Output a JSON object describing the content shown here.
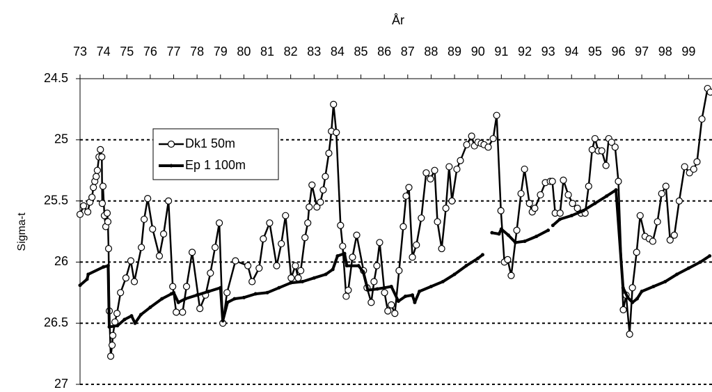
{
  "chart_data": {
    "type": "line",
    "x_title": "År",
    "y_title": "Sigma-t",
    "xlim": [
      73,
      100
    ],
    "xticks": [
      73,
      74,
      75,
      76,
      77,
      78,
      79,
      80,
      81,
      82,
      83,
      84,
      85,
      86,
      87,
      88,
      89,
      90,
      91,
      92,
      93,
      94,
      95,
      96,
      97,
      98,
      99
    ],
    "ylim": [
      24.5,
      27
    ],
    "y_reversed": true,
    "yticks": [
      24.5,
      25,
      25.5,
      26,
      26.5,
      27
    ],
    "grid": true,
    "legend": "upper left",
    "series": [
      {
        "name": "Dk1 50m",
        "color": "#000000",
        "marker": "open-circle",
        "x": [
          73.0,
          73.15,
          73.33,
          73.42,
          73.51,
          73.57,
          73.63,
          73.69,
          73.74,
          73.81,
          73.87,
          73.93,
          73.95,
          73.98,
          74.04,
          74.1,
          74.16,
          74.19,
          74.22,
          74.25,
          74.31,
          74.37,
          74.4,
          74.49,
          74.58,
          74.73,
          74.96,
          75.17,
          75.32,
          75.62,
          75.74,
          75.89,
          76.1,
          76.39,
          76.57,
          76.78,
          76.96,
          77.11,
          77.38,
          77.55,
          77.79,
          78.12,
          78.36,
          78.57,
          78.77,
          78.95,
          79.1,
          79.28,
          79.64,
          80.17,
          80.35,
          80.65,
          80.83,
          81.1,
          81.4,
          81.6,
          81.78,
          82.02,
          82.2,
          82.32,
          82.43,
          82.61,
          82.73,
          82.79,
          82.91,
          83.12,
          83.27,
          83.39,
          83.48,
          83.63,
          83.74,
          83.83,
          83.95,
          84.13,
          84.22,
          84.37,
          84.46,
          84.64,
          84.82,
          85.11,
          85.26,
          85.44,
          85.56,
          85.68,
          85.8,
          86.01,
          86.15,
          86.3,
          86.45,
          86.63,
          86.81,
          86.93,
          87.05,
          87.2,
          87.37,
          87.58,
          87.79,
          87.97,
          88.15,
          88.27,
          88.45,
          88.63,
          88.77,
          88.89,
          89.1,
          89.25,
          89.52,
          89.73,
          89.85,
          90.0,
          90.14,
          90.26,
          90.44,
          90.65,
          90.8,
          90.98,
          91.13,
          91.27,
          91.42,
          91.66,
          91.84,
          91.99,
          92.2,
          92.32,
          92.43,
          92.67,
          92.88,
          93.09,
          93.18,
          93.3,
          93.51,
          93.65,
          93.86,
          94.04,
          94.25,
          94.4,
          94.58,
          94.73,
          94.88,
          95.0,
          95.14,
          95.29,
          95.47,
          95.59,
          95.71,
          95.86,
          96.0,
          96.21,
          96.33,
          96.48,
          96.6,
          96.78,
          96.93,
          97.14,
          97.32,
          97.47,
          97.67,
          97.85,
          98.03,
          98.21,
          98.39,
          98.6,
          98.83,
          99.04,
          99.22,
          99.36,
          99.57,
          99.81,
          99.93
        ],
        "values": [
          25.61,
          25.54,
          25.59,
          25.51,
          25.47,
          25.39,
          25.34,
          25.3,
          25.25,
          25.14,
          25.08,
          25.14,
          25.52,
          25.38,
          25.62,
          25.71,
          25.6,
          25.67,
          25.89,
          26.4,
          26.77,
          26.68,
          26.6,
          26.49,
          26.42,
          26.25,
          26.13,
          25.99,
          26.16,
          25.88,
          25.65,
          25.48,
          25.73,
          25.95,
          25.77,
          25.5,
          26.2,
          26.41,
          26.41,
          26.2,
          25.92,
          26.38,
          26.27,
          26.09,
          25.88,
          25.68,
          26.5,
          26.25,
          25.99,
          26.03,
          26.16,
          26.05,
          25.81,
          25.68,
          26.03,
          25.85,
          25.62,
          26.13,
          26.03,
          26.13,
          26.07,
          25.8,
          25.68,
          25.55,
          25.37,
          25.55,
          25.51,
          25.41,
          25.3,
          25.11,
          24.93,
          24.71,
          24.94,
          25.7,
          25.87,
          26.28,
          26.23,
          25.96,
          25.78,
          26.07,
          26.21,
          26.33,
          26.16,
          26.03,
          25.84,
          26.25,
          26.4,
          26.35,
          26.42,
          26.07,
          25.71,
          25.46,
          25.39,
          25.96,
          25.86,
          25.64,
          25.27,
          25.32,
          25.25,
          25.67,
          25.89,
          25.56,
          25.22,
          25.5,
          25.24,
          25.17,
          25.04,
          24.97,
          25.05,
          25.02,
          25.03,
          25.04,
          25.06,
          24.99,
          24.8,
          25.58,
          26.0,
          25.98,
          26.11,
          25.74,
          25.44,
          25.24,
          25.52,
          25.59,
          25.56,
          25.45,
          25.35,
          25.34,
          25.34,
          25.6,
          25.6,
          25.33,
          25.45,
          25.52,
          25.56,
          25.6,
          25.6,
          25.38,
          25.08,
          24.99,
          25.09,
          25.09,
          25.21,
          24.99,
          25.02,
          25.06,
          25.34,
          26.39,
          26.27,
          26.59,
          26.21,
          25.92,
          25.62,
          25.79,
          25.81,
          25.83,
          25.67,
          25.44,
          25.38,
          25.82,
          25.78,
          25.5,
          25.22,
          25.27,
          25.24,
          25.18,
          24.83,
          24.58,
          24.61
        ]
      },
      {
        "name": "Ep 1 100m",
        "color": "#000000",
        "marker": "dot",
        "x": [
          73.0,
          73.3,
          73.35,
          74.0,
          74.2,
          74.25,
          74.6,
          74.9,
          75.2,
          75.35,
          75.6,
          76.0,
          76.5,
          76.9,
          77.0,
          77.2,
          77.5,
          78.0,
          78.5,
          79.0,
          79.1,
          79.3,
          79.6,
          80.0,
          80.5,
          81.0,
          81.5,
          82.0,
          82.5,
          83.0,
          83.5,
          83.8,
          84.0,
          84.3,
          84.4,
          84.9,
          85.1,
          85.3,
          85.7,
          86.0,
          86.3,
          86.6,
          86.9,
          87.2,
          87.3,
          87.5,
          88.0,
          88.5,
          89.0,
          89.5,
          90.0,
          90.2,
          90.4,
          90.6,
          90.9,
          91.0,
          91.3,
          91.6,
          92.0,
          92.5,
          93.0,
          93.1,
          93.2,
          93.5,
          94.0,
          94.5,
          95.0,
          95.5,
          95.9,
          96.2,
          96.4,
          96.6,
          96.8,
          97.0,
          97.5,
          98.0,
          98.5,
          99.0,
          99.5,
          99.9
        ],
        "values": [
          26.19,
          26.14,
          26.1,
          26.04,
          26.03,
          26.53,
          26.52,
          26.47,
          26.44,
          26.5,
          26.43,
          26.37,
          26.3,
          26.26,
          26.25,
          26.33,
          26.3,
          26.27,
          26.24,
          26.21,
          26.48,
          26.33,
          26.3,
          26.29,
          26.26,
          26.25,
          26.21,
          26.17,
          26.16,
          26.13,
          26.1,
          26.06,
          25.95,
          25.93,
          26.03,
          26.03,
          26.08,
          26.23,
          26.22,
          26.21,
          26.2,
          26.32,
          26.28,
          26.27,
          26.33,
          26.24,
          26.2,
          26.16,
          26.1,
          26.03,
          25.97,
          25.94,
          null,
          25.76,
          25.77,
          25.73,
          25.78,
          25.84,
          25.83,
          25.79,
          25.74,
          null,
          25.7,
          25.65,
          25.62,
          25.58,
          25.52,
          25.46,
          25.41,
          26.21,
          26.29,
          26.33,
          26.3,
          26.24,
          26.2,
          26.16,
          26.1,
          26.05,
          26.0,
          25.95
        ]
      }
    ]
  }
}
